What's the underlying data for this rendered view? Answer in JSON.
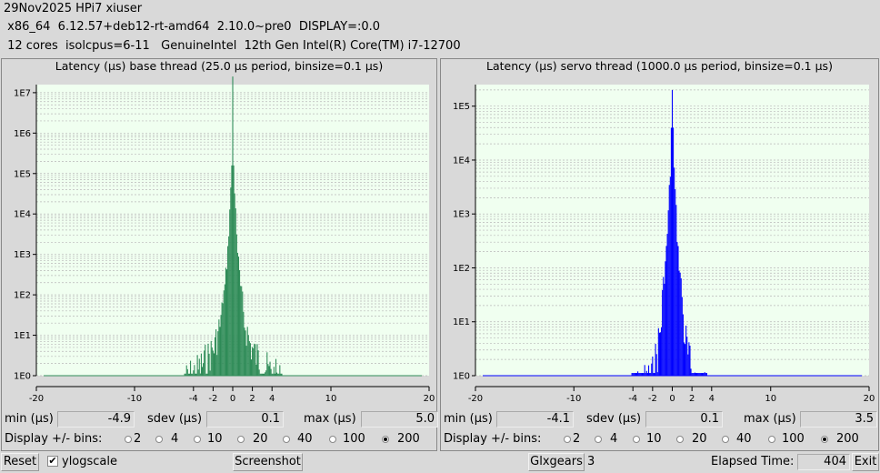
{
  "header": {
    "line1": "29Nov2025 HPi7 xiuser",
    "line2": " x86_64  6.12.57+deb12-rt-amd64  2.10.0~pre0  DISPLAY=:0.0",
    "line3": " 12 cores  isolcpus=6-11   GenuineIntel  12th Gen Intel(R) Core(TM) i7-12700"
  },
  "colors": {
    "base_bars": "#2e8b57",
    "servo_bars": "#0000ff",
    "plot_bg": "#f0fff0",
    "grid": "#b8b8b8"
  },
  "panels": [
    {
      "title": "Latency (µs) base thread (25.0 µs period, binsize=0.1 µs)",
      "stats": {
        "min_label": "min (µs)",
        "min": "-4.9",
        "sdev_label": "sdev (µs)",
        "sdev": "0.1",
        "max_label": "max (µs)",
        "max": "5.0"
      },
      "bins": {
        "label": "Display +/- bins:",
        "options": [
          "2",
          "4",
          "10",
          "20",
          "40",
          "100",
          "200"
        ],
        "selected": "200"
      }
    },
    {
      "title": "Latency (µs) servo thread (1000.0 µs period, binsize=0.1 µs)",
      "stats": {
        "min_label": "min (µs)",
        "min": "-4.1",
        "sdev_label": "sdev (µs)",
        "sdev": "0.1",
        "max_label": "max (µs)",
        "max": "3.5"
      },
      "bins": {
        "label": "Display +/- bins:",
        "options": [
          "2",
          "4",
          "10",
          "20",
          "40",
          "100",
          "200"
        ],
        "selected": "200"
      }
    }
  ],
  "chart_data": [
    {
      "type": "bar",
      "title": "Latency (µs) base thread (25.0 µs period, binsize=0.1 µs)",
      "xlim": [
        -20,
        20
      ],
      "ylog": true,
      "ylim_exp": [
        0,
        7.2
      ],
      "ytick_labels": [
        "1E0",
        "1E1",
        "1E2",
        "1E3",
        "1E4",
        "1E5",
        "1E6",
        "1E7"
      ],
      "xtick_values": [
        -20,
        -10,
        -4,
        -2,
        0,
        2,
        4,
        10,
        20
      ],
      "xtick_labels": [
        "-20",
        "-10",
        "-4",
        "-2",
        "0",
        "2",
        "4",
        "10",
        "20"
      ],
      "bar_color": "#2e8b57",
      "center_log": 7.4,
      "min": -4.9,
      "max": 5.0,
      "envelope": [
        [
          0,
          7.4
        ],
        [
          0.1,
          5.2
        ],
        [
          0.3,
          4.3
        ],
        [
          0.5,
          3.3
        ],
        [
          0.8,
          2.4
        ],
        [
          1.2,
          1.8
        ],
        [
          1.8,
          1.2
        ],
        [
          2.5,
          0.9
        ],
        [
          3.5,
          0.6
        ],
        [
          5.0,
          0.3
        ]
      ]
    },
    {
      "type": "bar",
      "title": "Latency (µs) servo thread (1000.0 µs period, binsize=0.1 µs)",
      "xlim": [
        -20,
        20
      ],
      "ylog": true,
      "ylim_exp": [
        0,
        5.4
      ],
      "ytick_labels": [
        "1E0",
        "1E1",
        "1E2",
        "1E3",
        "1E4",
        "1E5"
      ],
      "xtick_values": [
        -20,
        -10,
        -4,
        -2,
        0,
        2,
        4,
        10,
        20
      ],
      "xtick_labels": [
        "-20",
        "-10",
        "-4",
        "-2",
        "0",
        "2",
        "4",
        "10",
        "20"
      ],
      "bar_color": "#0000ff",
      "center_log": 5.3,
      "min": -4.1,
      "max": 3.5,
      "envelope": [
        [
          0,
          5.3
        ],
        [
          0.1,
          4.6
        ],
        [
          0.2,
          4.0
        ],
        [
          0.4,
          3.2
        ],
        [
          0.6,
          2.5
        ],
        [
          0.9,
          1.9
        ],
        [
          1.2,
          1.3
        ],
        [
          1.6,
          0.8
        ],
        [
          2.0,
          0.4
        ],
        [
          3.5,
          0.15
        ]
      ]
    }
  ],
  "bottom": {
    "reset_label": "Reset",
    "ylogscale_label": "ylogscale",
    "ylogscale_checked": "✔",
    "screenshot_label": "Screenshot",
    "glxgears_label": "Glxgears",
    "glxgears_count": "3",
    "elapsed_label": "Elapsed Time:",
    "elapsed_value": "404",
    "exit_label": "Exit"
  }
}
